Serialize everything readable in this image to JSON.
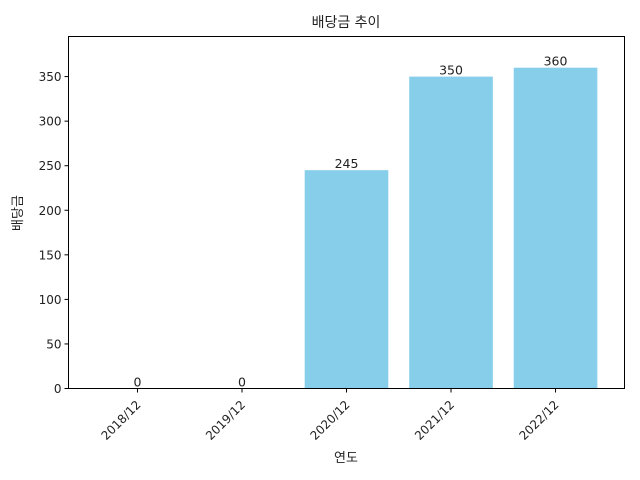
{
  "chart_data": {
    "type": "bar",
    "title": "배당금 추이",
    "xlabel": "연도",
    "ylabel": "배당금",
    "categories": [
      "2018/12",
      "2019/12",
      "2020/12",
      "2021/12",
      "2022/12"
    ],
    "values": [
      0,
      0,
      245,
      350,
      360
    ],
    "data_labels": [
      "0",
      "0",
      "245",
      "350",
      "360"
    ],
    "ylim": [
      0,
      395
    ],
    "yticks": [
      0,
      50,
      100,
      150,
      200,
      250,
      300,
      350
    ],
    "bar_color": "#87CEEB",
    "grid": false,
    "legend": "none"
  }
}
